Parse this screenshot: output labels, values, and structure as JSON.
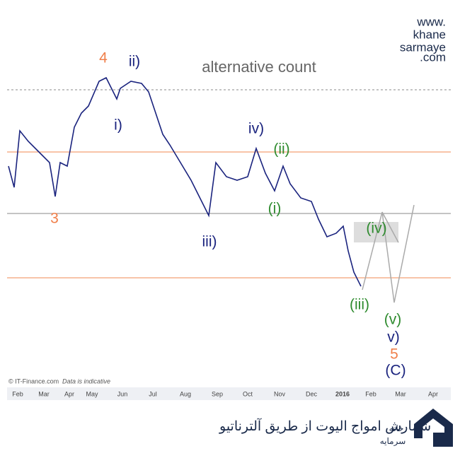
{
  "watermark": [
    "www.",
    "khane",
    "sarmaye",
    ".com"
  ],
  "title": "alternative count",
  "wave_labels": [
    "4",
    "ii)",
    "i)",
    "iv)",
    "(ii)",
    "3",
    "iii)",
    "(i)",
    "(iv)",
    "(iii)",
    "(v)",
    "v)",
    "5",
    "(C)"
  ],
  "months": [
    "Feb",
    "Mar",
    "Apr",
    "May",
    "Jun",
    "Jul",
    "Aug",
    "Sep",
    "Oct",
    "Nov",
    "Dec",
    "2016",
    "Feb",
    "Mar",
    "Apr"
  ],
  "source": "© IT-Finance.com",
  "note": "Data is indicative",
  "caption": "شمارش امواج الیوت از طریق آلترناتیو",
  "logo_text": [
    "خانه",
    "سرمایه"
  ]
}
